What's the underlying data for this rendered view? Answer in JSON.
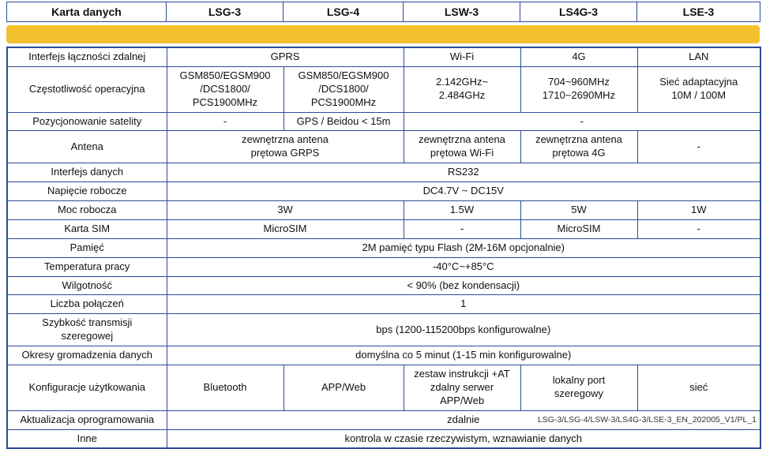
{
  "accent": {
    "band_color": "#F2C12E",
    "border_color": "#2A4B9B"
  },
  "header": {
    "label_column": "Karta danych",
    "columns": [
      "LSG-3",
      "LSG-4",
      "LSW-3",
      "LS4G-3",
      "LSE-3"
    ]
  },
  "rows": [
    {
      "label": "Interfejs łączności zdalnej",
      "cells": [
        {
          "text": "GPRS",
          "span": 2
        },
        {
          "text": "Wi-Fi",
          "span": 1
        },
        {
          "text": "4G",
          "span": 1
        },
        {
          "text": "LAN",
          "span": 1
        }
      ]
    },
    {
      "label": "Częstotliwość operacyjna",
      "cells": [
        {
          "text": "GSM850/EGSM900\n/DCS1800/\nPCS1900MHz",
          "span": 1
        },
        {
          "text": "GSM850/EGSM900\n/DCS1800/\nPCS1900MHz",
          "span": 1
        },
        {
          "text": "2.142GHz~\n2.484GHz",
          "span": 1
        },
        {
          "text": "704~960MHz\n1710~2690MHz",
          "span": 1
        },
        {
          "text": "Sieć adaptacyjna\n10M / 100M",
          "span": 1
        }
      ]
    },
    {
      "label": "Pozycjonowanie satelity",
      "cells": [
        {
          "text": "-",
          "span": 1
        },
        {
          "text": "GPS / Beidou < 15m",
          "span": 1
        },
        {
          "text": "-",
          "span": 3
        }
      ]
    },
    {
      "label": "Antena",
      "cells": [
        {
          "text": "zewnętrzna antena\nprętowa GRPS",
          "span": 2
        },
        {
          "text": "zewnętrzna antena\nprętowa Wi-Fi",
          "span": 1
        },
        {
          "text": "zewnętrzna antena\nprętowa 4G",
          "span": 1
        },
        {
          "text": "-",
          "span": 1
        }
      ]
    },
    {
      "label": "Interfejs danych",
      "cells": [
        {
          "text": "RS232",
          "span": 5
        }
      ]
    },
    {
      "label": "Napięcie robocze",
      "cells": [
        {
          "text": "DC4.7V ~ DC15V",
          "span": 5
        }
      ]
    },
    {
      "label": "Moc robocza",
      "cells": [
        {
          "text": "3W",
          "span": 2
        },
        {
          "text": "1.5W",
          "span": 1
        },
        {
          "text": "5W",
          "span": 1
        },
        {
          "text": "1W",
          "span": 1
        }
      ]
    },
    {
      "label": "Karta SIM",
      "cells": [
        {
          "text": "MicroSIM",
          "span": 2
        },
        {
          "text": "-",
          "span": 1
        },
        {
          "text": "MicroSIM",
          "span": 1
        },
        {
          "text": "-",
          "span": 1
        }
      ]
    },
    {
      "label": "Pamięć",
      "cells": [
        {
          "text": "2M pamięć typu Flash (2M-16M opcjonalnie)",
          "span": 5
        }
      ]
    },
    {
      "label": "Temperatura pracy",
      "cells": [
        {
          "text": "-40°C~+85°C",
          "span": 5
        }
      ]
    },
    {
      "label": "Wilgotność",
      "cells": [
        {
          "text": "< 90% (bez kondensacji)",
          "span": 5
        }
      ]
    },
    {
      "label": "Liczba połączeń",
      "cells": [
        {
          "text": "1",
          "span": 5
        }
      ]
    },
    {
      "label": "Szybkość transmisji\nszeregowej",
      "cells": [
        {
          "text": "bps (1200-115200bps konfigurowalne)",
          "span": 5
        }
      ]
    },
    {
      "label": "Okresy gromadzenia danych",
      "cells": [
        {
          "text": "domyślna co 5 minut (1-15 min konfigurowalne)",
          "span": 5
        }
      ]
    },
    {
      "label": "Konfiguracje użytkowania",
      "cells": [
        {
          "text": "Bluetooth",
          "span": 1
        },
        {
          "text": "APP/Web",
          "span": 1
        },
        {
          "text": "zestaw instrukcji +AT\nzdalny serwer\nAPP/Web",
          "span": 1
        },
        {
          "text": "lokalny port\nszeregowy",
          "span": 1
        },
        {
          "text": "sieć",
          "span": 1
        }
      ]
    },
    {
      "label": "Aktualizacja oprogramowania",
      "cells": [
        {
          "text": "zdalnie",
          "span": 5
        }
      ]
    },
    {
      "label": "Inne",
      "cells": [
        {
          "text": "kontrola w czasie rzeczywistym, wznawianie danych",
          "span": 5
        }
      ]
    }
  ],
  "footer": {
    "text": "LSG-3/LSG-4/LSW-3/LS4G-3/LSE-3_EN_202005_V1/PL_1"
  }
}
